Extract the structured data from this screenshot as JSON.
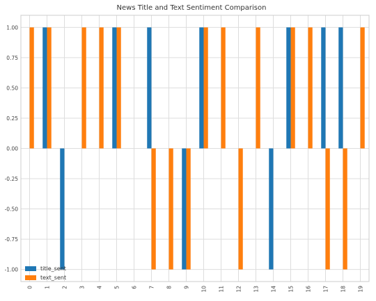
{
  "chart_data": {
    "type": "bar",
    "title": "News Title and Text Sentiment Comparison",
    "xlabel": "",
    "ylabel": "",
    "categories": [
      "0",
      "1",
      "2",
      "3",
      "4",
      "5",
      "6",
      "7",
      "8",
      "9",
      "10",
      "11",
      "12",
      "13",
      "14",
      "15",
      "16",
      "17",
      "18",
      "19"
    ],
    "series": [
      {
        "name": "title_sent",
        "color": "#1f77b4",
        "values": [
          0,
          1,
          -1,
          0,
          0,
          1,
          0,
          1,
          0,
          -1,
          1,
          0,
          0,
          0,
          -1,
          1,
          0,
          1,
          1,
          0
        ]
      },
      {
        "name": "text_sent",
        "color": "#ff7f0e",
        "values": [
          1,
          1,
          0,
          1,
          1,
          1,
          0,
          -1,
          -1,
          -1,
          1,
          1,
          -1,
          1,
          0,
          1,
          1,
          -1,
          -1,
          1
        ]
      }
    ],
    "ylim": [
      -1.1,
      1.1
    ],
    "yticks": [
      "-1.00",
      "-0.75",
      "-0.50",
      "-0.25",
      "0.00",
      "0.25",
      "0.50",
      "0.75",
      "1.00"
    ],
    "grid": true,
    "legend_position": "lower-left"
  }
}
